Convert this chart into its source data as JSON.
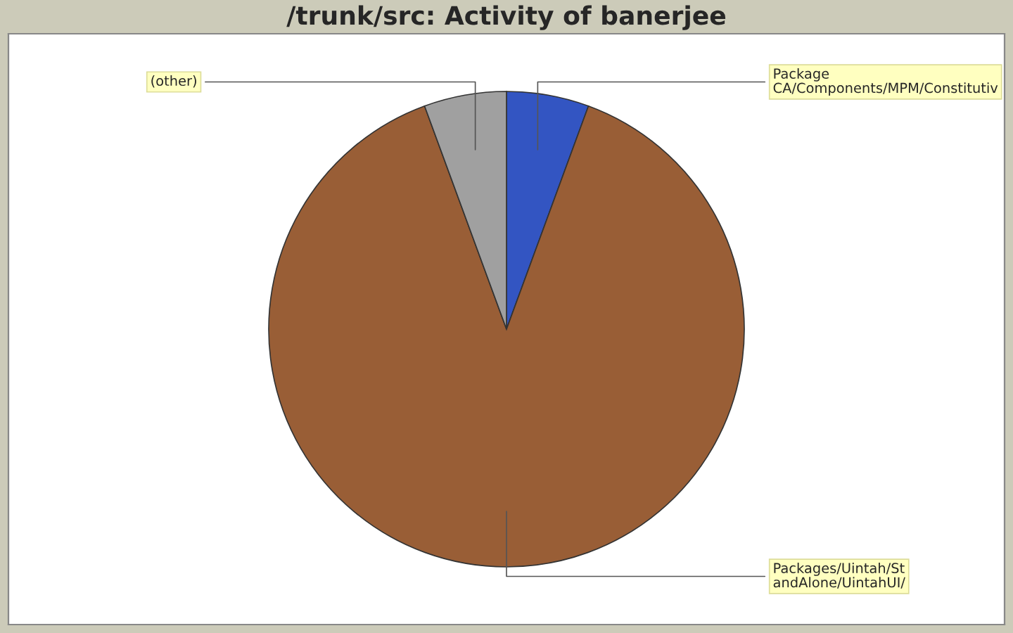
{
  "chart_data": {
    "type": "pie",
    "title": "/trunk/src: Activity of banerjee",
    "categories": [
      "Package\nCA/Components/MPM/Constitutiv",
      "Packages/Uintah/St\nandAlone/UintahUI/",
      "(other)"
    ],
    "values": [
      5.6,
      88.8,
      5.6
    ],
    "colors": [
      "#3355c2",
      "#995e36",
      "#a0a0a0"
    ]
  }
}
